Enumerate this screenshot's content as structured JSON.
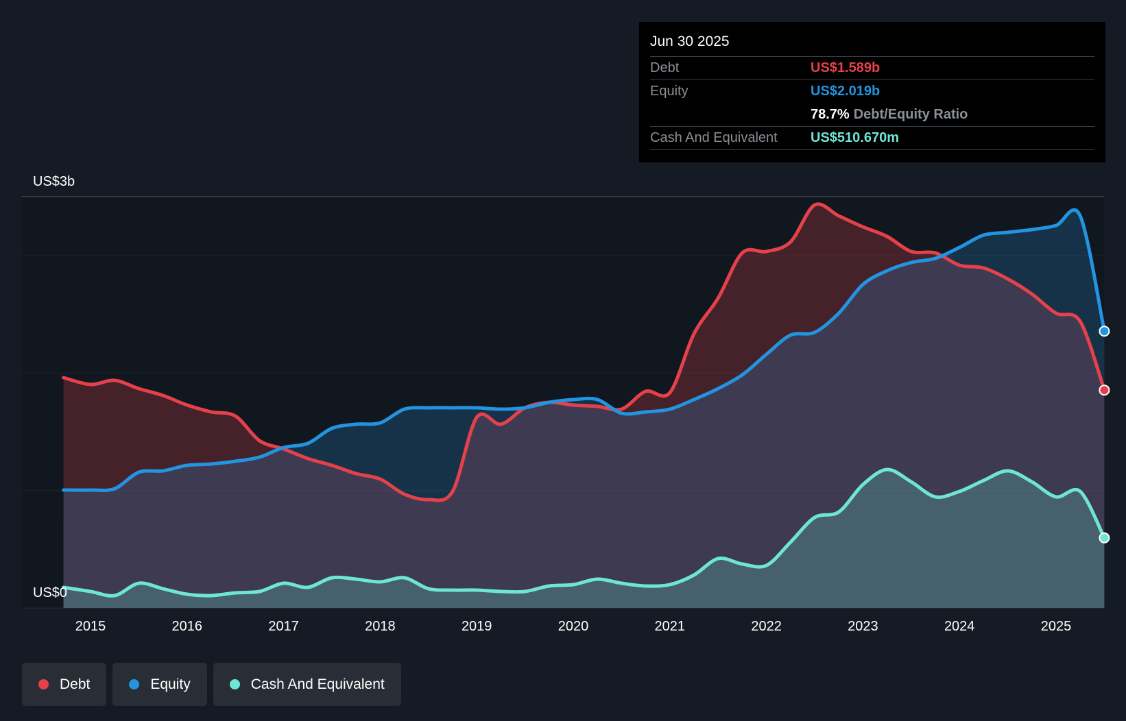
{
  "chart_data": {
    "type": "area",
    "title": "",
    "xlabel": "",
    "ylabel": "",
    "ylim": [
      0,
      3.0
    ],
    "y_unit": "US$b",
    "y_tick_labels": [
      {
        "value": 3.0,
        "label": "US$3b"
      },
      {
        "value": 0,
        "label": "US$0"
      }
    ],
    "gridlines": [
      0,
      0.857,
      1.714,
      2.571,
      3.0
    ],
    "x_ticks": [
      2015,
      2016,
      2017,
      2018,
      2019,
      2020,
      2021,
      2022,
      2023,
      2024,
      2025
    ],
    "xlim": [
      2014.72,
      2025.5
    ],
    "series": [
      {
        "name": "Debt",
        "color": "#e5414b",
        "x": [
          2014.72,
          2015.0,
          2015.25,
          2015.5,
          2015.75,
          2016.0,
          2016.25,
          2016.5,
          2016.75,
          2017.0,
          2017.25,
          2017.5,
          2017.75,
          2018.0,
          2018.25,
          2018.5,
          2018.75,
          2019.0,
          2019.25,
          2019.5,
          2019.75,
          2020.0,
          2020.25,
          2020.5,
          2020.75,
          2021.0,
          2021.25,
          2021.5,
          2021.75,
          2022.0,
          2022.25,
          2022.5,
          2022.75,
          2023.0,
          2023.25,
          2023.5,
          2023.75,
          2024.0,
          2024.25,
          2024.5,
          2024.75,
          2025.0,
          2025.25,
          2025.5
        ],
        "values": [
          1.68,
          1.63,
          1.66,
          1.6,
          1.55,
          1.48,
          1.43,
          1.4,
          1.22,
          1.16,
          1.09,
          1.04,
          0.98,
          0.94,
          0.83,
          0.79,
          0.85,
          1.39,
          1.34,
          1.46,
          1.5,
          1.48,
          1.47,
          1.45,
          1.58,
          1.57,
          2.0,
          2.26,
          2.59,
          2.6,
          2.67,
          2.94,
          2.86,
          2.78,
          2.71,
          2.6,
          2.59,
          2.5,
          2.48,
          2.4,
          2.29,
          2.15,
          2.09,
          1.589
        ]
      },
      {
        "name": "Equity",
        "color": "#2394df",
        "x": [
          2014.72,
          2015.0,
          2015.25,
          2015.5,
          2015.75,
          2016.0,
          2016.25,
          2016.5,
          2016.75,
          2017.0,
          2017.25,
          2017.5,
          2017.75,
          2018.0,
          2018.25,
          2018.5,
          2018.75,
          2019.0,
          2019.25,
          2019.5,
          2019.75,
          2020.0,
          2020.25,
          2020.5,
          2020.75,
          2021.0,
          2021.25,
          2021.5,
          2021.75,
          2022.0,
          2022.25,
          2022.5,
          2022.75,
          2023.0,
          2023.25,
          2023.5,
          2023.75,
          2024.0,
          2024.25,
          2024.5,
          2024.75,
          2025.0,
          2025.25,
          2025.5
        ],
        "values": [
          0.86,
          0.86,
          0.87,
          0.99,
          1.0,
          1.04,
          1.05,
          1.07,
          1.1,
          1.17,
          1.2,
          1.31,
          1.34,
          1.35,
          1.45,
          1.46,
          1.46,
          1.46,
          1.45,
          1.46,
          1.5,
          1.52,
          1.52,
          1.42,
          1.43,
          1.45,
          1.52,
          1.6,
          1.7,
          1.85,
          1.99,
          2.01,
          2.15,
          2.36,
          2.46,
          2.52,
          2.55,
          2.63,
          2.72,
          2.74,
          2.76,
          2.79,
          2.86,
          2.019
        ]
      },
      {
        "name": "Cash And Equivalent",
        "color": "#6ee6d3",
        "x": [
          2014.72,
          2015.0,
          2015.25,
          2015.5,
          2015.75,
          2016.0,
          2016.25,
          2016.5,
          2016.75,
          2017.0,
          2017.25,
          2017.5,
          2017.75,
          2018.0,
          2018.25,
          2018.5,
          2018.75,
          2019.0,
          2019.25,
          2019.5,
          2019.75,
          2020.0,
          2020.25,
          2020.5,
          2020.75,
          2021.0,
          2021.25,
          2021.5,
          2021.75,
          2022.0,
          2022.25,
          2022.5,
          2022.75,
          2023.0,
          2023.25,
          2023.5,
          2023.75,
          2024.0,
          2024.25,
          2024.5,
          2024.75,
          2025.0,
          2025.25,
          2025.5
        ],
        "values": [
          0.15,
          0.12,
          0.09,
          0.18,
          0.14,
          0.1,
          0.09,
          0.11,
          0.12,
          0.18,
          0.15,
          0.22,
          0.21,
          0.19,
          0.22,
          0.14,
          0.13,
          0.13,
          0.12,
          0.12,
          0.16,
          0.17,
          0.21,
          0.18,
          0.16,
          0.17,
          0.24,
          0.36,
          0.32,
          0.31,
          0.48,
          0.66,
          0.7,
          0.9,
          1.01,
          0.92,
          0.81,
          0.85,
          0.93,
          1.0,
          0.92,
          0.81,
          0.85,
          0.511
        ]
      }
    ]
  },
  "tooltip": {
    "date": "Jun 30 2025",
    "debt_label": "Debt",
    "debt_value": "US$1.589b",
    "equity_label": "Equity",
    "equity_value": "US$2.019b",
    "ratio_value": "78.7%",
    "ratio_label": "Debt/Equity Ratio",
    "cash_label": "Cash And Equivalent",
    "cash_value": "US$510.670m"
  },
  "legend": [
    {
      "label": "Debt",
      "color": "#e5414b"
    },
    {
      "label": "Equity",
      "color": "#2394df"
    },
    {
      "label": "Cash And Equivalent",
      "color": "#6ee6d3"
    }
  ],
  "colors": {
    "background": "#151b24",
    "ratio_value": "#ffffff",
    "muted": "#8b9096"
  }
}
